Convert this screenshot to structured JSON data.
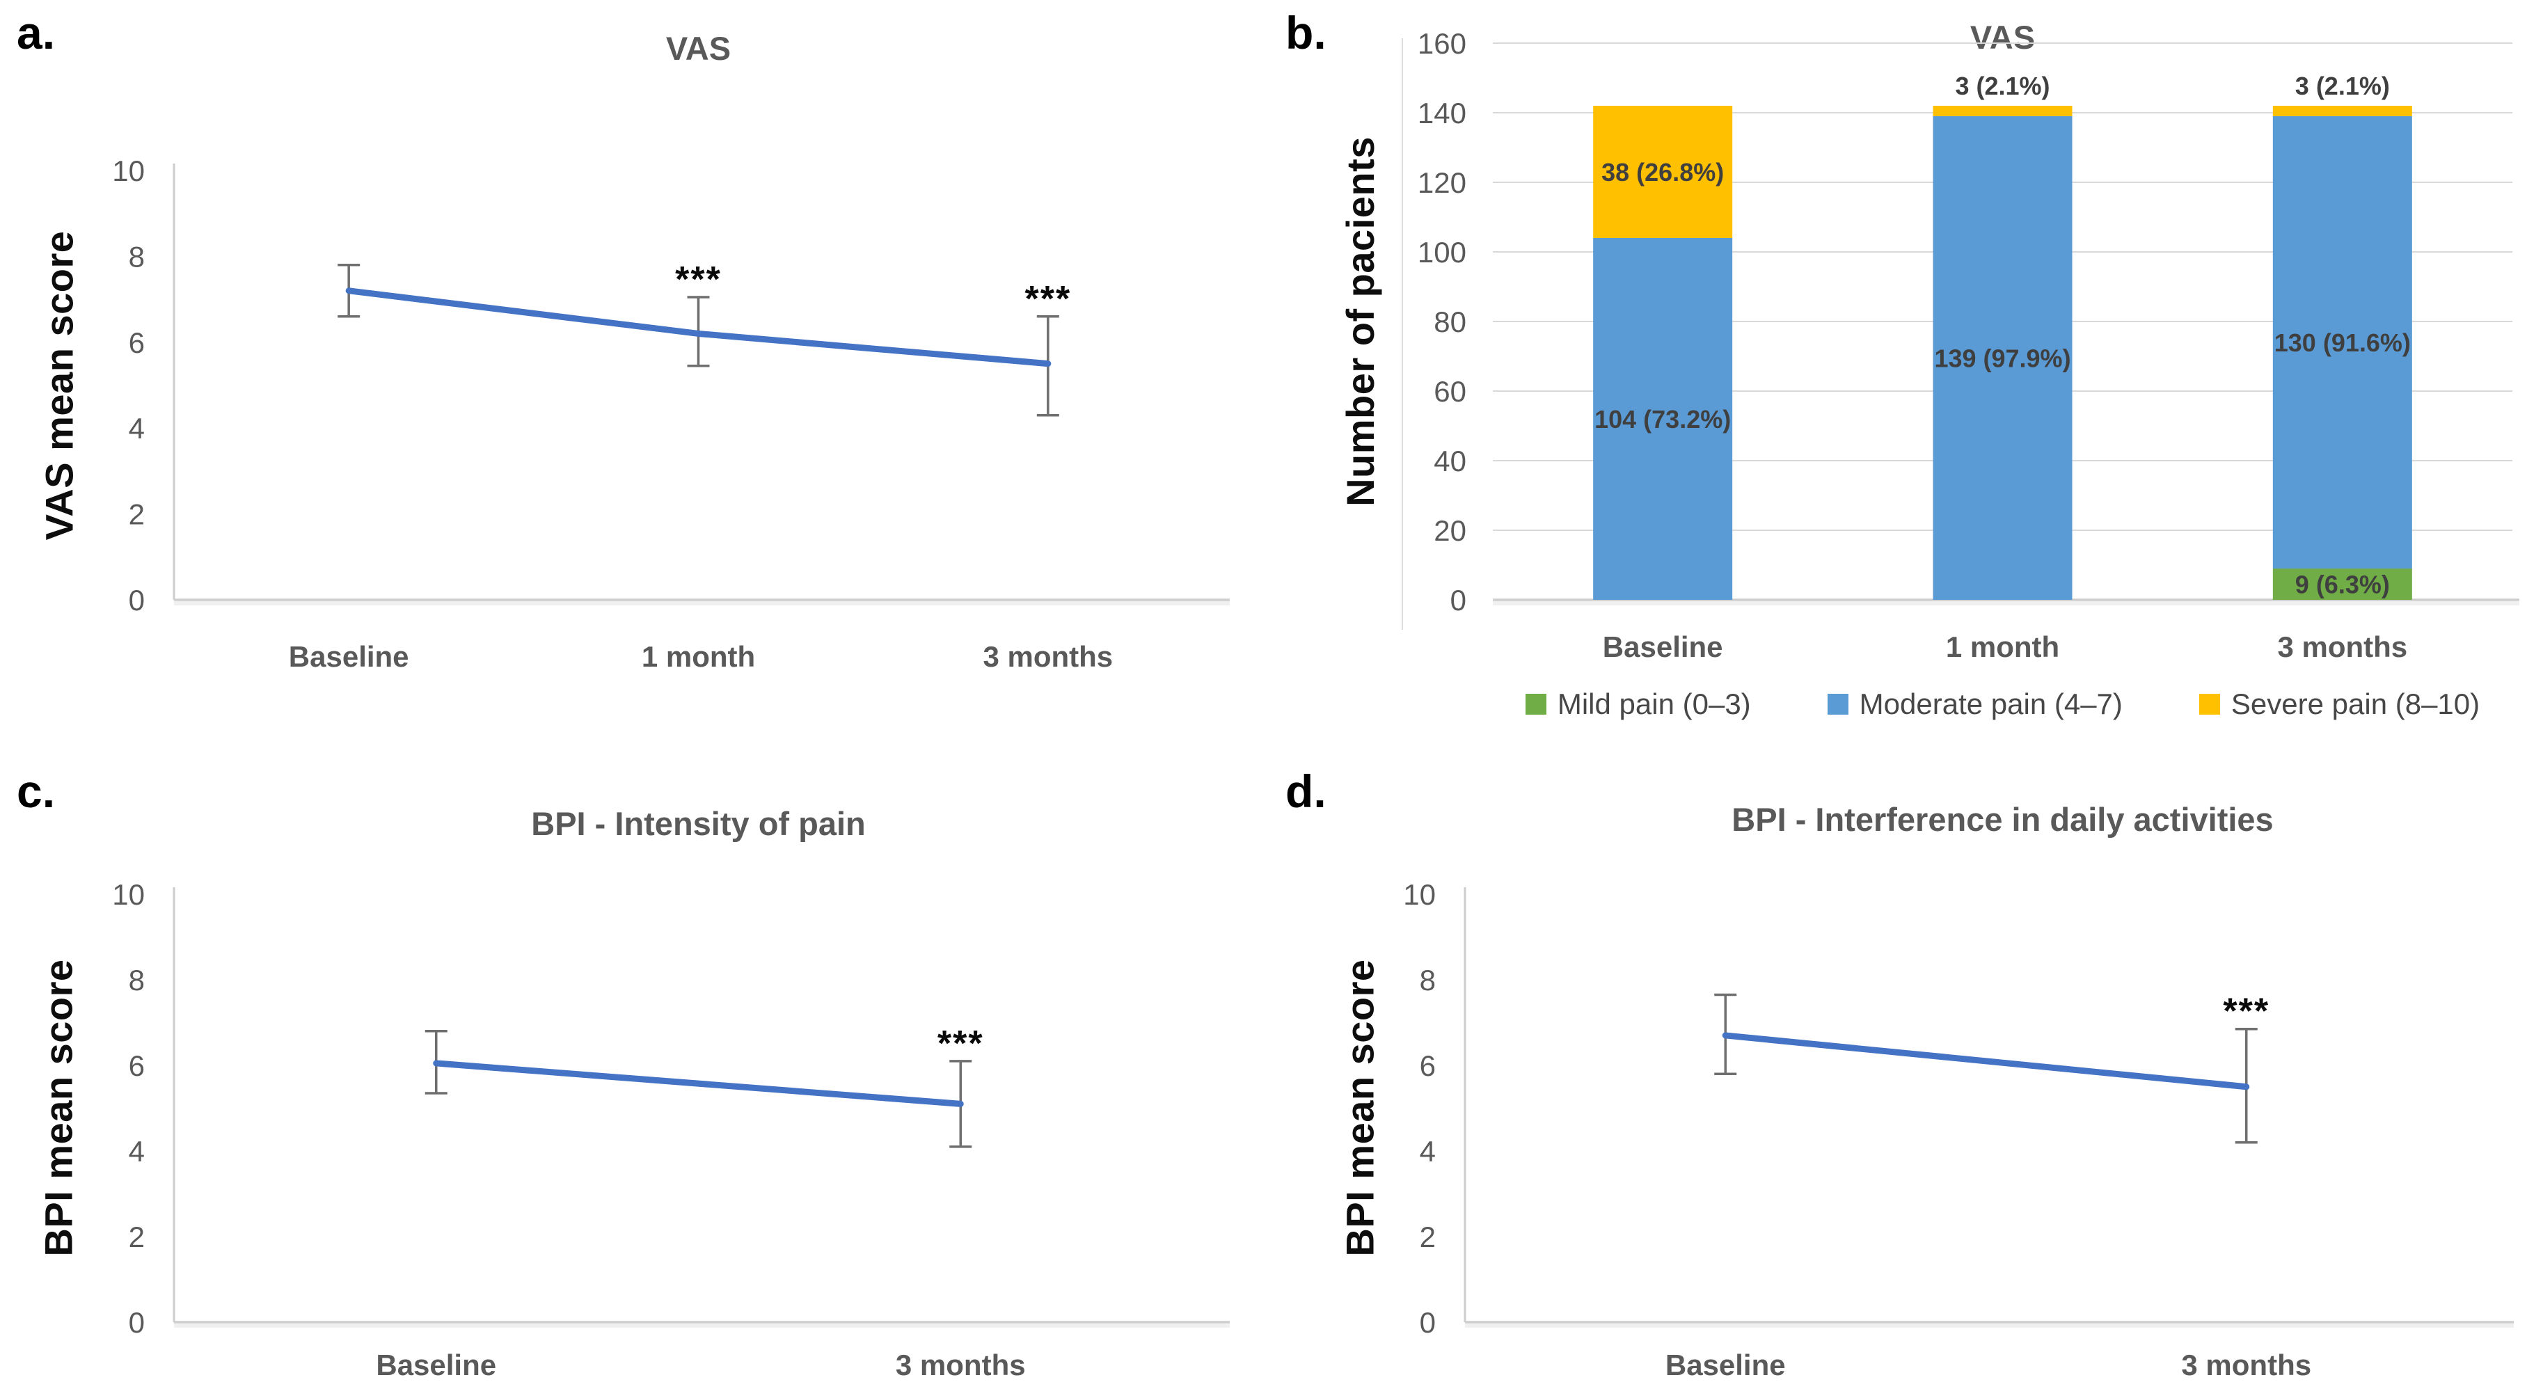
{
  "figure": {
    "background": "#ffffff",
    "axis_color": "#CDCDCD",
    "gridline_color": "#D9D9D9",
    "tick_label_color": "#595959",
    "category_label_color": "#595959",
    "bar_label_color": "#3F3F3F",
    "error_bar_color": "#6F6F6F",
    "annotation_color": "#0A0A0A"
  },
  "chart_data": [
    {
      "id": "panel-a",
      "panel_label": "a.",
      "type": "line",
      "title": "VAS",
      "ylabel": "VAS mean score",
      "categories": [
        "Baseline",
        "1 month",
        "3 months"
      ],
      "values": [
        7.2,
        6.2,
        5.5
      ],
      "error_low": [
        6.6,
        5.45,
        4.3
      ],
      "error_high": [
        7.8,
        7.05,
        6.6
      ],
      "annotations": [
        "",
        "***",
        "***"
      ],
      "ylim": [
        0,
        10
      ],
      "yticks": [
        0,
        2,
        4,
        6,
        8,
        10
      ],
      "line_color": "#4472C4",
      "legend_position": "none",
      "grid": false
    },
    {
      "id": "panel-b",
      "panel_label": "b.",
      "type": "stacked-bar",
      "title": "VAS",
      "ylabel": "Number of pacients",
      "categories": [
        "Baseline",
        "1 month",
        "3 months"
      ],
      "series": [
        {
          "name": "Mild pain (0–3)",
          "color": "#70AD47",
          "values": [
            0,
            0,
            9
          ],
          "labels": [
            "",
            "",
            "9  (6.3%)"
          ]
        },
        {
          "name": "Moderate pain (4–7)",
          "color": "#5B9BD5",
          "values": [
            104,
            139,
            130
          ],
          "labels": [
            "104 (73.2%)",
            "139 (97.9%)",
            "130 (91.6%)"
          ]
        },
        {
          "name": "Severe pain (8–10)",
          "color": "#FFC000",
          "values": [
            38,
            3,
            3
          ],
          "labels": [
            "38 (26.8%)",
            "3 (2.1%)",
            "3 (2.1%)"
          ]
        }
      ],
      "totals": [
        142,
        142,
        142
      ],
      "ylim": [
        0,
        160
      ],
      "yticks": [
        0,
        20,
        40,
        60,
        80,
        100,
        120,
        140,
        160
      ],
      "legend_position": "bottom",
      "grid": true
    },
    {
      "id": "panel-c",
      "panel_label": "c.",
      "type": "line",
      "title": "BPI - Intensity of pain",
      "ylabel": "BPI mean score",
      "categories": [
        "Baseline",
        "3 months"
      ],
      "values": [
        6.05,
        5.1
      ],
      "error_low": [
        5.35,
        4.1
      ],
      "error_high": [
        6.8,
        6.1
      ],
      "annotations": [
        "",
        "***"
      ],
      "ylim": [
        0,
        10
      ],
      "yticks": [
        0,
        2,
        4,
        6,
        8,
        10
      ],
      "line_color": "#4472C4",
      "legend_position": "none",
      "grid": false
    },
    {
      "id": "panel-d",
      "panel_label": "d.",
      "type": "line",
      "title": "BPI - Interference in daily activities",
      "ylabel": "BPI mean score",
      "categories": [
        "Baseline",
        "3 months"
      ],
      "values": [
        6.7,
        5.5
      ],
      "error_low": [
        5.8,
        4.2
      ],
      "error_high": [
        7.65,
        6.85
      ],
      "annotations": [
        "",
        "***"
      ],
      "ylim": [
        0,
        10
      ],
      "yticks": [
        0,
        2,
        4,
        6,
        8,
        10
      ],
      "line_color": "#4472C4",
      "legend_position": "none",
      "grid": false
    }
  ]
}
